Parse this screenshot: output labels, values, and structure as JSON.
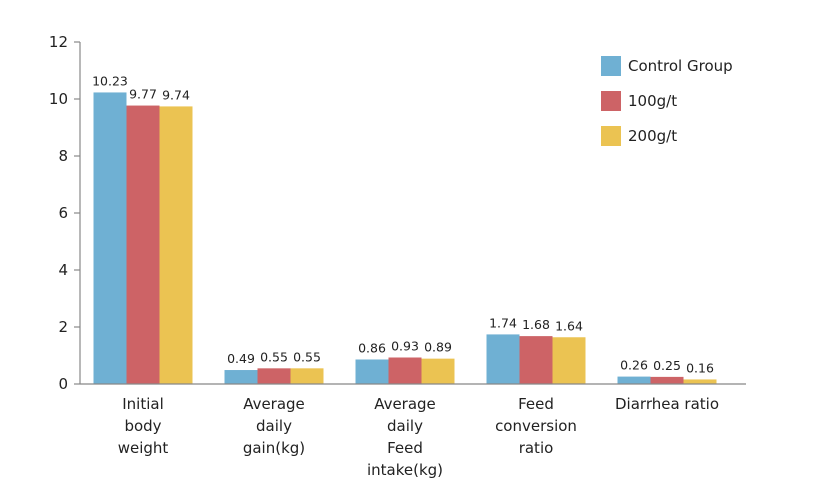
{
  "chart_data": {
    "type": "bar",
    "categories": [
      [
        "Initial",
        "body",
        "weight"
      ],
      [
        "Average",
        "daily",
        "gain(kg)"
      ],
      [
        "Average",
        "daily",
        "Feed",
        "intake(kg)"
      ],
      [
        "Feed",
        "conversion",
        "ratio"
      ],
      [
        "Diarrhea ratio"
      ]
    ],
    "series": [
      {
        "name": "Control Group",
        "color": "#6fb0d3",
        "values": [
          10.23,
          0.49,
          0.86,
          1.74,
          0.26
        ],
        "labels": [
          "10.23",
          "0.49",
          "0.86",
          "1.74",
          "0.26"
        ]
      },
      {
        "name": "100g/t",
        "color": "#cd6366",
        "values": [
          9.77,
          0.55,
          0.93,
          1.68,
          0.25
        ],
        "labels": [
          "9.77",
          "0.55",
          "0.93",
          "1.68",
          "0.25"
        ]
      },
      {
        "name": "200g/t",
        "color": "#ebc352",
        "values": [
          9.74,
          0.55,
          0.89,
          1.64,
          0.16
        ],
        "labels": [
          "9.74",
          "0.55",
          "0.89",
          "1.64",
          "0.16"
        ]
      }
    ],
    "y_ticks": [
      "0",
      "2",
      "4",
      "6",
      "8",
      "10",
      "12"
    ],
    "ylim": [
      0,
      12
    ],
    "title": "",
    "xlabel": "",
    "ylabel": "",
    "grid": false,
    "legend_position": "top-right"
  }
}
